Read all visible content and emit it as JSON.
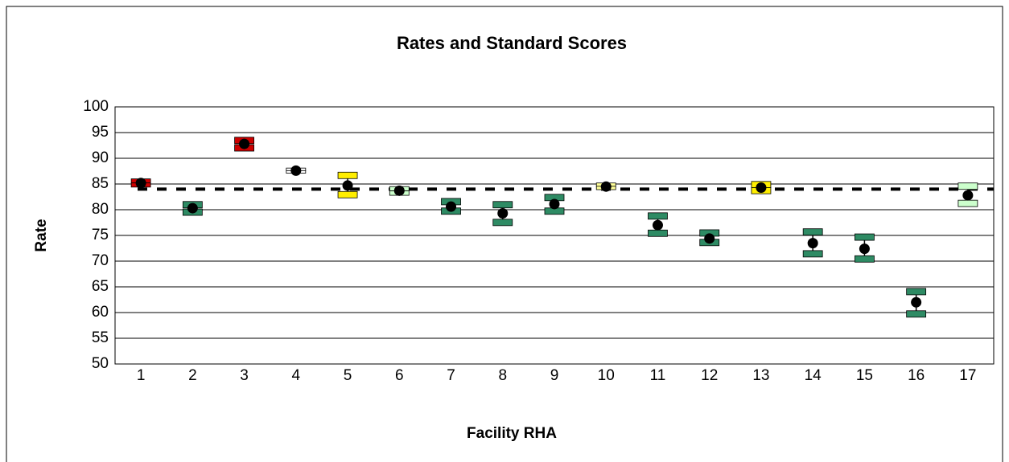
{
  "chart_data": {
    "type": "errorbar",
    "title": "Rates and Standard Scores",
    "xlabel": "Facility RHA",
    "ylabel": "Rate",
    "categories": [
      "1",
      "2",
      "3",
      "4",
      "5",
      "6",
      "7",
      "8",
      "9",
      "10",
      "11",
      "12",
      "13",
      "14",
      "15",
      "16",
      "17"
    ],
    "values": [
      85.2,
      80.3,
      92.8,
      87.6,
      84.7,
      83.7,
      80.6,
      79.3,
      81.1,
      84.5,
      77.0,
      74.4,
      84.3,
      73.5,
      72.4,
      62.0,
      82.8
    ],
    "lower": [
      84.4,
      78.9,
      91.4,
      87.1,
      82.3,
      82.8,
      79.1,
      76.9,
      79.1,
      83.9,
      74.8,
      73.0,
      83.1,
      70.8,
      69.8,
      59.1,
      80.6
    ],
    "upper": [
      86.0,
      81.6,
      94.1,
      88.1,
      87.3,
      84.5,
      82.2,
      81.6,
      83.0,
      85.2,
      79.4,
      76.1,
      85.5,
      76.3,
      75.3,
      64.7,
      85.2
    ],
    "colors": [
      "#cc0000",
      "#2e8b64",
      "#cc0000",
      "#ffffff",
      "#ffee00",
      "#ccffcc",
      "#2e8b64",
      "#2e8b64",
      "#2e8b64",
      "#ffff99",
      "#2e8b64",
      "#2e8b64",
      "#ffee00",
      "#2e8b64",
      "#2e8b64",
      "#2e8b64",
      "#ccffcc"
    ],
    "reference": 84,
    "ylim": [
      50,
      100
    ],
    "yticks": [
      50,
      55,
      60,
      65,
      70,
      75,
      80,
      85,
      90,
      95,
      100
    ],
    "grid": true
  }
}
